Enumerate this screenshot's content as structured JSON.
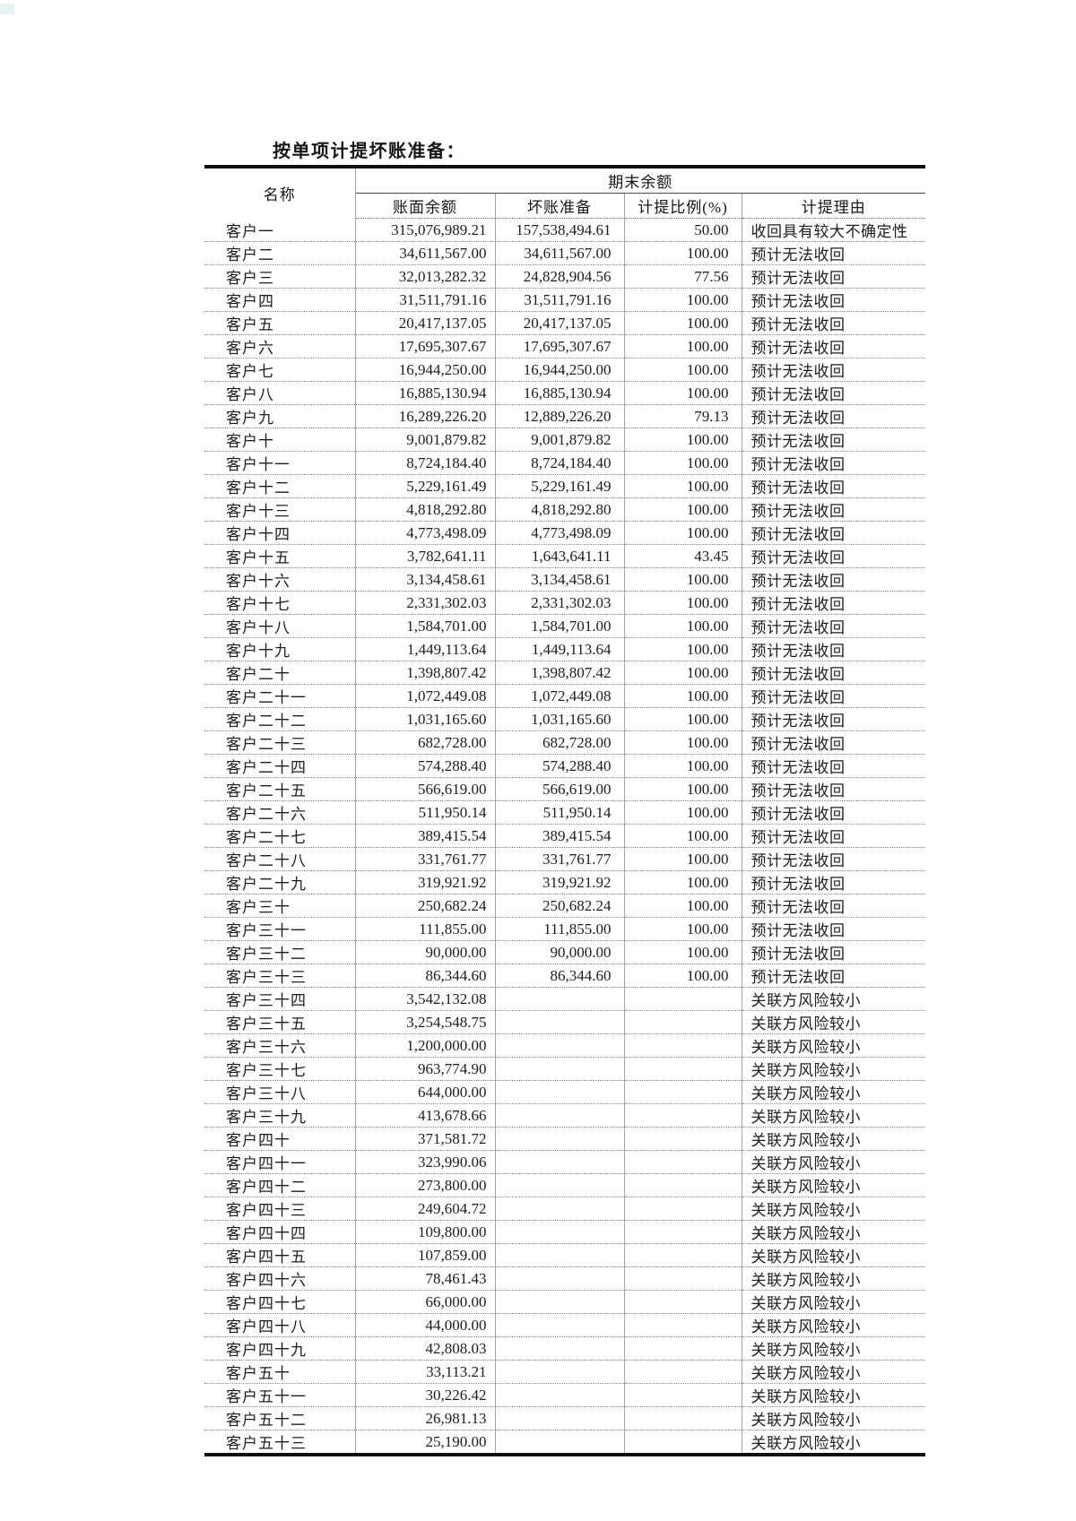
{
  "page": {
    "title": "按单项计提坏账准备："
  },
  "table": {
    "header": {
      "name": "名称",
      "period_balance": "期末余额",
      "columns": [
        "账面余额",
        "坏账准备",
        "计提比例(%)",
        "计提理由"
      ]
    },
    "rows": [
      [
        "客户一",
        "315,076,989.21",
        "157,538,494.61",
        "50.00",
        "收回具有较大不确定性"
      ],
      [
        "客户二",
        "34,611,567.00",
        "34,611,567.00",
        "100.00",
        "预计无法收回"
      ],
      [
        "客户三",
        "32,013,282.32",
        "24,828,904.56",
        "77.56",
        "预计无法收回"
      ],
      [
        "客户四",
        "31,511,791.16",
        "31,511,791.16",
        "100.00",
        "预计无法收回"
      ],
      [
        "客户五",
        "20,417,137.05",
        "20,417,137.05",
        "100.00",
        "预计无法收回"
      ],
      [
        "客户六",
        "17,695,307.67",
        "17,695,307.67",
        "100.00",
        "预计无法收回"
      ],
      [
        "客户七",
        "16,944,250.00",
        "16,944,250.00",
        "100.00",
        "预计无法收回"
      ],
      [
        "客户八",
        "16,885,130.94",
        "16,885,130.94",
        "100.00",
        "预计无法收回"
      ],
      [
        "客户九",
        "16,289,226.20",
        "12,889,226.20",
        "79.13",
        "预计无法收回"
      ],
      [
        "客户十",
        "9,001,879.82",
        "9,001,879.82",
        "100.00",
        "预计无法收回"
      ],
      [
        "客户十一",
        "8,724,184.40",
        "8,724,184.40",
        "100.00",
        "预计无法收回"
      ],
      [
        "客户十二",
        "5,229,161.49",
        "5,229,161.49",
        "100.00",
        "预计无法收回"
      ],
      [
        "客户十三",
        "4,818,292.80",
        "4,818,292.80",
        "100.00",
        "预计无法收回"
      ],
      [
        "客户十四",
        "4,773,498.09",
        "4,773,498.09",
        "100.00",
        "预计无法收回"
      ],
      [
        "客户十五",
        "3,782,641.11",
        "1,643,641.11",
        "43.45",
        "预计无法收回"
      ],
      [
        "客户十六",
        "3,134,458.61",
        "3,134,458.61",
        "100.00",
        "预计无法收回"
      ],
      [
        "客户十七",
        "2,331,302.03",
        "2,331,302.03",
        "100.00",
        "预计无法收回"
      ],
      [
        "客户十八",
        "1,584,701.00",
        "1,584,701.00",
        "100.00",
        "预计无法收回"
      ],
      [
        "客户十九",
        "1,449,113.64",
        "1,449,113.64",
        "100.00",
        "预计无法收回"
      ],
      [
        "客户二十",
        "1,398,807.42",
        "1,398,807.42",
        "100.00",
        "预计无法收回"
      ],
      [
        "客户二十一",
        "1,072,449.08",
        "1,072,449.08",
        "100.00",
        "预计无法收回"
      ],
      [
        "客户二十二",
        "1,031,165.60",
        "1,031,165.60",
        "100.00",
        "预计无法收回"
      ],
      [
        "客户二十三",
        "682,728.00",
        "682,728.00",
        "100.00",
        "预计无法收回"
      ],
      [
        "客户二十四",
        "574,288.40",
        "574,288.40",
        "100.00",
        "预计无法收回"
      ],
      [
        "客户二十五",
        "566,619.00",
        "566,619.00",
        "100.00",
        "预计无法收回"
      ],
      [
        "客户二十六",
        "511,950.14",
        "511,950.14",
        "100.00",
        "预计无法收回"
      ],
      [
        "客户二十七",
        "389,415.54",
        "389,415.54",
        "100.00",
        "预计无法收回"
      ],
      [
        "客户二十八",
        "331,761.77",
        "331,761.77",
        "100.00",
        "预计无法收回"
      ],
      [
        "客户二十九",
        "319,921.92",
        "319,921.92",
        "100.00",
        "预计无法收回"
      ],
      [
        "客户三十",
        "250,682.24",
        "250,682.24",
        "100.00",
        "预计无法收回"
      ],
      [
        "客户三十一",
        "111,855.00",
        "111,855.00",
        "100.00",
        "预计无法收回"
      ],
      [
        "客户三十二",
        "90,000.00",
        "90,000.00",
        "100.00",
        "预计无法收回"
      ],
      [
        "客户三十三",
        "86,344.60",
        "86,344.60",
        "100.00",
        "预计无法收回"
      ],
      [
        "客户三十四",
        "3,542,132.08",
        "",
        "",
        "关联方风险较小"
      ],
      [
        "客户三十五",
        "3,254,548.75",
        "",
        "",
        "关联方风险较小"
      ],
      [
        "客户三十六",
        "1,200,000.00",
        "",
        "",
        "关联方风险较小"
      ],
      [
        "客户三十七",
        "963,774.90",
        "",
        "",
        "关联方风险较小"
      ],
      [
        "客户三十八",
        "644,000.00",
        "",
        "",
        "关联方风险较小"
      ],
      [
        "客户三十九",
        "413,678.66",
        "",
        "",
        "关联方风险较小"
      ],
      [
        "客户四十",
        "371,581.72",
        "",
        "",
        "关联方风险较小"
      ],
      [
        "客户四十一",
        "323,990.06",
        "",
        "",
        "关联方风险较小"
      ],
      [
        "客户四十二",
        "273,800.00",
        "",
        "",
        "关联方风险较小"
      ],
      [
        "客户四十三",
        "249,604.72",
        "",
        "",
        "关联方风险较小"
      ],
      [
        "客户四十四",
        "109,800.00",
        "",
        "",
        "关联方风险较小"
      ],
      [
        "客户四十五",
        "107,859.00",
        "",
        "",
        "关联方风险较小"
      ],
      [
        "客户四十六",
        "78,461.43",
        "",
        "",
        "关联方风险较小"
      ],
      [
        "客户四十七",
        "66,000.00",
        "",
        "",
        "关联方风险较小"
      ],
      [
        "客户四十八",
        "44,000.00",
        "",
        "",
        "关联方风险较小"
      ],
      [
        "客户四十九",
        "42,808.03",
        "",
        "",
        "关联方风险较小"
      ],
      [
        "客户五十",
        "33,113.21",
        "",
        "",
        "关联方风险较小"
      ],
      [
        "客户五十一",
        "30,226.42",
        "",
        "",
        "关联方风险较小"
      ],
      [
        "客户五十二",
        "26,981.13",
        "",
        "",
        "关联方风险较小"
      ],
      [
        "客户五十三",
        "25,190.00",
        "",
        "",
        "关联方风险较小"
      ]
    ]
  }
}
